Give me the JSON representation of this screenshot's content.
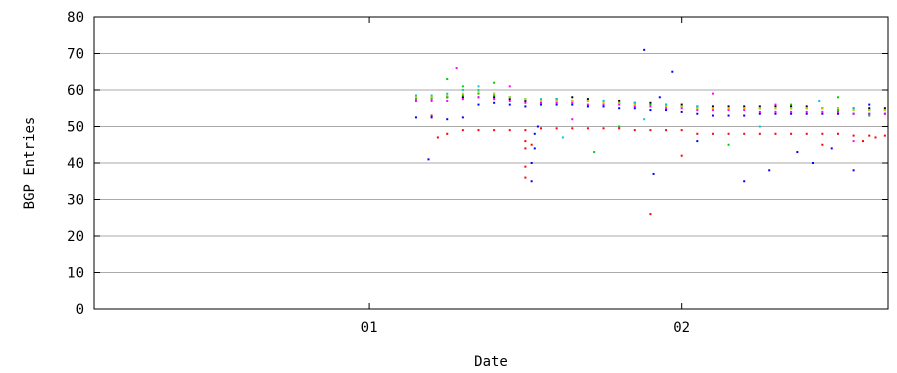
{
  "chart_data": {
    "type": "scatter",
    "title": "",
    "xlabel": "Date",
    "ylabel": "BGP Entries",
    "ylim": [
      0,
      80
    ],
    "yticks": [
      0,
      10,
      20,
      30,
      40,
      50,
      60,
      70,
      80
    ],
    "xlim": [
      0.12,
      2.66
    ],
    "xticks": [
      {
        "value": 1,
        "label": "01"
      },
      {
        "value": 2,
        "label": "02"
      }
    ],
    "grid": true,
    "legend": "none",
    "series": [
      {
        "color": "#000000",
        "x": [
          1.15,
          1.2,
          1.25,
          1.3,
          1.35,
          1.4,
          1.45,
          1.5,
          1.55,
          1.6,
          1.65,
          1.7,
          1.75,
          1.8,
          1.85,
          1.9,
          1.95,
          2.0,
          2.05,
          2.1,
          2.15,
          2.2,
          2.25,
          2.3,
          2.35,
          2.4,
          2.45,
          2.5,
          2.55,
          2.6,
          2.65
        ],
        "y": [
          58,
          58,
          58,
          58,
          58,
          58,
          57.5,
          57,
          57,
          57.5,
          58,
          57.5,
          57,
          57,
          56.5,
          56.5,
          56,
          56,
          55.5,
          55.5,
          55.5,
          55.5,
          55.5,
          55.5,
          55.5,
          55.5,
          55,
          55,
          55,
          55,
          55
        ]
      },
      {
        "color": "#ff0000",
        "x": [
          1.2,
          1.25,
          1.3,
          1.35,
          1.4,
          1.45,
          1.5,
          1.55,
          1.6,
          1.65,
          1.7,
          1.75,
          1.8,
          1.85,
          1.9,
          1.95,
          2.0,
          2.05,
          2.1,
          2.15,
          2.2,
          2.25,
          2.3,
          2.35,
          2.4,
          2.45,
          2.5,
          2.55,
          2.6,
          2.65
        ],
        "y": [
          53,
          48,
          49,
          49,
          49,
          49,
          49,
          49.5,
          49.5,
          49.5,
          49.5,
          49.5,
          49.5,
          49,
          49,
          49,
          49,
          48,
          48,
          48,
          48,
          48,
          48,
          48,
          48,
          48,
          48,
          47.5,
          47.5,
          47.5
        ]
      },
      {
        "color": "#0000ff",
        "x": [
          1.15,
          1.2,
          1.25,
          1.3,
          1.35,
          1.4,
          1.45,
          1.5,
          1.55,
          1.6,
          1.65,
          1.7,
          1.75,
          1.8,
          1.85,
          1.9,
          1.95,
          2.0,
          2.05,
          2.1,
          2.15,
          2.2,
          2.25,
          2.3,
          2.35,
          2.4,
          2.45,
          2.5,
          2.55,
          2.6,
          2.65
        ],
        "y": [
          52.5,
          52.5,
          52,
          52.5,
          56,
          56.5,
          56,
          55.5,
          56,
          56,
          56,
          55.5,
          55.5,
          55,
          55,
          54.5,
          54.5,
          54,
          53.5,
          53,
          53,
          53,
          53.5,
          53.5,
          53.5,
          53.5,
          53.5,
          53.5,
          53.5,
          53.5,
          53.5
        ]
      },
      {
        "color": "#00cc00",
        "x": [
          1.15,
          1.2,
          1.25,
          1.3,
          1.35,
          1.4,
          1.45,
          1.5,
          1.55,
          1.6,
          1.65,
          1.7,
          1.75,
          1.8,
          1.85,
          1.9,
          1.95,
          2.0,
          2.05,
          2.1,
          2.15,
          2.2,
          2.25,
          2.3,
          2.35,
          2.4,
          2.45,
          2.5,
          2.55,
          2.6,
          2.65
        ],
        "y": [
          57.5,
          57.5,
          58,
          58.5,
          59,
          58.5,
          58,
          57.5,
          57,
          57,
          57,
          57,
          56.5,
          56.5,
          56,
          56,
          55.5,
          55.5,
          55,
          55,
          55,
          55,
          55,
          55,
          55,
          55,
          55,
          54.5,
          54.5,
          54.5,
          54.5
        ]
      },
      {
        "color": "#ff00ff",
        "x": [
          1.15,
          1.2,
          1.25,
          1.3,
          1.35,
          1.4,
          1.45,
          1.5,
          1.55,
          1.6,
          1.65,
          1.7,
          1.75,
          1.8,
          1.85,
          1.9,
          1.95,
          2.0,
          2.05,
          2.1,
          2.15,
          2.2,
          2.25,
          2.3,
          2.35,
          2.4,
          2.45,
          2.5,
          2.55,
          2.6,
          2.65
        ],
        "y": [
          57,
          57,
          57,
          57.5,
          58,
          57.5,
          57,
          56.5,
          56.5,
          56.5,
          56.5,
          56,
          56,
          56,
          55.5,
          55.5,
          55,
          55,
          54.5,
          54.5,
          54.5,
          54.5,
          54,
          54,
          54,
          54,
          54,
          54,
          53.5,
          53.5,
          53.5
        ]
      },
      {
        "color": "#00cccc",
        "x": [
          1.15,
          1.2,
          1.25,
          1.3,
          1.35,
          1.4,
          1.45,
          1.5,
          1.55,
          1.6,
          1.65,
          1.7,
          1.75,
          1.8,
          1.85,
          1.9,
          1.95,
          2.0,
          2.05,
          2.1,
          2.15,
          2.2,
          2.25,
          2.3,
          2.35,
          2.4,
          2.45,
          2.5,
          2.55,
          2.6,
          2.65
        ],
        "y": [
          58.5,
          58.5,
          59,
          60,
          60,
          59,
          58,
          57.5,
          57.5,
          57.5,
          57,
          57,
          57,
          56.5,
          56.5,
          56,
          56,
          55.5,
          55.5,
          55,
          55,
          55,
          55,
          55,
          55,
          55,
          55,
          55,
          55,
          54.5,
          54.5
        ]
      },
      {
        "color": "#cccc00",
        "x": [
          1.15,
          1.2,
          1.25,
          1.3,
          1.35,
          1.4,
          1.45,
          1.5,
          1.55,
          1.6,
          1.65,
          1.7,
          1.75,
          1.8,
          1.85,
          1.9,
          1.95,
          2.0,
          2.05,
          2.1,
          2.15,
          2.2,
          2.25,
          2.3,
          2.35,
          2.4,
          2.45,
          2.5,
          2.55,
          2.6,
          2.65
        ],
        "y": [
          58,
          58,
          58.5,
          59,
          59.5,
          59,
          58,
          57.5,
          57,
          57,
          57,
          57,
          56.5,
          56.5,
          56,
          56,
          55.5,
          55.5,
          55,
          55,
          55,
          55,
          55,
          55,
          55,
          55,
          55,
          55,
          54.5,
          54.5,
          54.5
        ]
      },
      {
        "color": "#ff0000",
        "x": [
          1.22,
          1.5,
          1.5,
          1.5,
          1.5,
          1.52,
          1.9,
          2.0,
          2.45,
          2.58,
          2.62
        ],
        "y": [
          47,
          39,
          36,
          44,
          46,
          45,
          26,
          42,
          45,
          46,
          47
        ]
      },
      {
        "color": "#0000ff",
        "x": [
          1.19,
          1.52,
          1.52,
          1.53,
          1.53,
          1.54,
          1.88,
          1.91,
          1.93,
          1.97,
          2.05,
          2.2,
          2.28,
          2.37,
          2.42,
          2.48,
          2.55,
          2.6
        ],
        "y": [
          41,
          35,
          40,
          44,
          48,
          50,
          71,
          37,
          58,
          65,
          46,
          35,
          38,
          43,
          40,
          44,
          38,
          56
        ]
      },
      {
        "color": "#00cc00",
        "x": [
          1.25,
          1.3,
          1.4,
          1.72,
          1.8,
          1.9,
          2.15,
          2.35,
          2.5,
          2.6
        ],
        "y": [
          63,
          61,
          62,
          43,
          50,
          56,
          45,
          56,
          58,
          53
        ]
      },
      {
        "color": "#ff00ff",
        "x": [
          1.28,
          1.45,
          1.65,
          2.1,
          2.3,
          2.55
        ],
        "y": [
          66,
          61,
          52,
          59,
          56,
          46
        ]
      },
      {
        "color": "#00cccc",
        "x": [
          1.35,
          1.62,
          1.88,
          2.25,
          2.44
        ],
        "y": [
          61,
          47,
          52,
          50,
          57
        ]
      }
    ]
  }
}
